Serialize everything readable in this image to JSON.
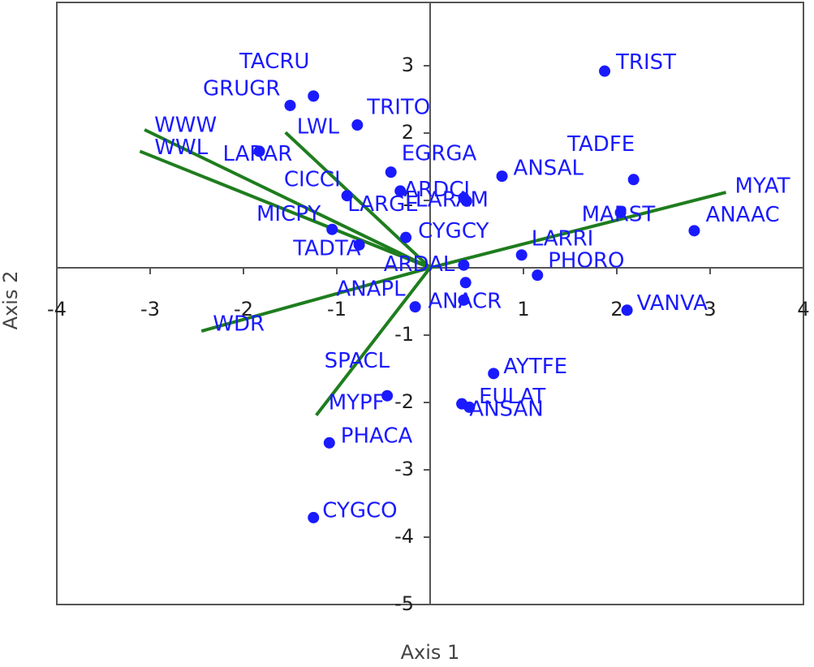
{
  "chart_data": {
    "type": "biplot",
    "x_label": "Axis 1",
    "y_label": "Axis 2",
    "xlim": [
      -4,
      4
    ],
    "ylim": [
      -5,
      3.94
    ],
    "xticks": [
      -4,
      -3,
      -2,
      -1,
      1,
      2,
      3,
      4
    ],
    "yticks": [
      -5,
      -4,
      -3,
      -2,
      -1,
      1,
      2,
      3
    ],
    "points": {
      "color": "#1a1aff",
      "labels": [
        "TRIST",
        "TACRU",
        "GRUGR",
        "TRITO",
        "LARAR",
        "EGRGA",
        "ANSAL",
        "TADFE",
        "CICCI",
        "LARGE",
        "ARDCI",
        "LARAM",
        "MICPY",
        "TADTA",
        "CYGCY",
        "ARDAL",
        null,
        "ANACR",
        "ANAPL",
        "LARRI",
        "PHORO",
        "MARST",
        "ANAAC",
        "VANVA",
        "AYTFE",
        "EULAT",
        "ANSAN",
        "SPACL",
        "PHACA",
        "CYGCO"
      ],
      "x": [
        1.87,
        -1.25,
        -1.5,
        -0.78,
        -1.83,
        -0.42,
        0.77,
        2.18,
        -0.89,
        -0.32,
        0.36,
        0.39,
        -1.05,
        -0.76,
        -0.26,
        0.36,
        0.38,
        0.36,
        -0.16,
        0.98,
        1.15,
        2.04,
        2.83,
        2.11,
        0.68,
        0.34,
        0.42,
        -0.46,
        -1.08,
        -1.25
      ],
      "y": [
        2.92,
        2.55,
        2.41,
        2.12,
        1.73,
        1.42,
        1.36,
        1.31,
        1.07,
        1.14,
        1.04,
        0.99,
        0.57,
        0.34,
        0.45,
        0.04,
        -0.22,
        -0.48,
        -0.58,
        0.19,
        -0.11,
        0.82,
        0.55,
        -0.63,
        -1.57,
        -2.02,
        -2.07,
        -1.9,
        -2.6,
        -3.71
      ]
    },
    "vectors": {
      "color": "#1e7d1e",
      "labels": [
        "WWW",
        "WWL",
        "LWL",
        "MYAT",
        "WDR",
        "MYPF"
      ],
      "x": [
        -3.06,
        -3.11,
        -1.55,
        3.17,
        -2.45,
        -1.22
      ],
      "y": [
        2.05,
        1.73,
        2.01,
        1.12,
        -0.94,
        -2.19
      ]
    }
  }
}
